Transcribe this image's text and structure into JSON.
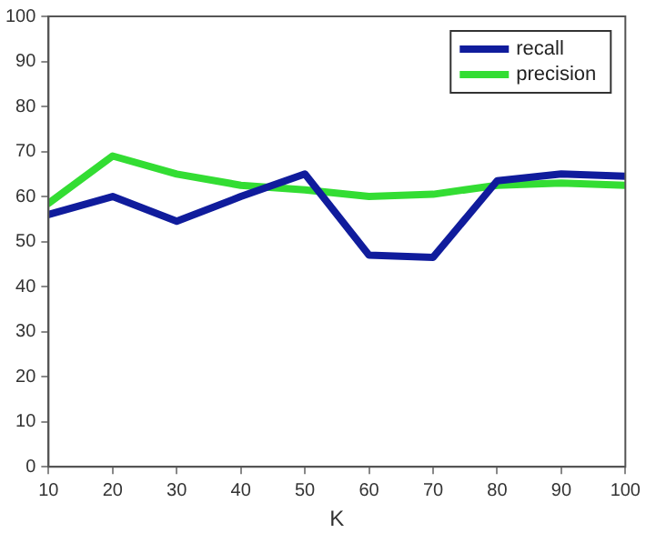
{
  "chart_data": {
    "type": "line",
    "xlabel": "K",
    "x": [
      10,
      20,
      30,
      40,
      50,
      60,
      70,
      80,
      90,
      100
    ],
    "series": [
      {
        "name": "recall",
        "color": "#101c9c",
        "values": [
          56,
          60,
          54.5,
          60,
          65,
          47,
          46.5,
          63.5,
          65,
          64.5
        ]
      },
      {
        "name": "precision",
        "color": "#33dd33",
        "values": [
          58.5,
          69,
          65,
          62.5,
          61.5,
          60,
          60.5,
          62.5,
          63,
          62.5
        ]
      }
    ],
    "xlim": [
      10,
      100
    ],
    "xticks": [
      10,
      20,
      30,
      40,
      50,
      60,
      70,
      80,
      90,
      100
    ],
    "ylim": [
      0,
      100
    ],
    "yticks": [
      0,
      10,
      20,
      30,
      40,
      50,
      60,
      70,
      80,
      90,
      100
    ],
    "grid": false,
    "legend": "top right",
    "marker": "none",
    "line_style": "solid"
  }
}
